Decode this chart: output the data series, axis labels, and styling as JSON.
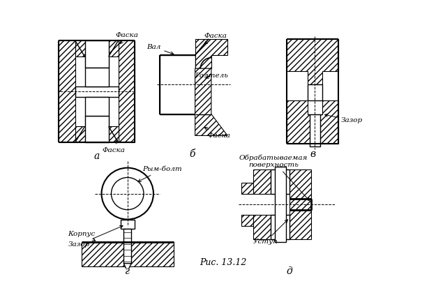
{
  "caption": "Рис. 13.12",
  "bg_color": "#ffffff",
  "labels": {
    "a": "а",
    "b": "б",
    "v": "в",
    "g": "г",
    "d": "д",
    "faska": "Фаска",
    "val": "Вал",
    "galtel": "Галтель",
    "korpus": "Корпус",
    "zazor": "Зазор",
    "rym_bolt": "Рым-болт",
    "obrab": "Обрабатываемая\nповерхность",
    "ustup": "Уступ"
  }
}
